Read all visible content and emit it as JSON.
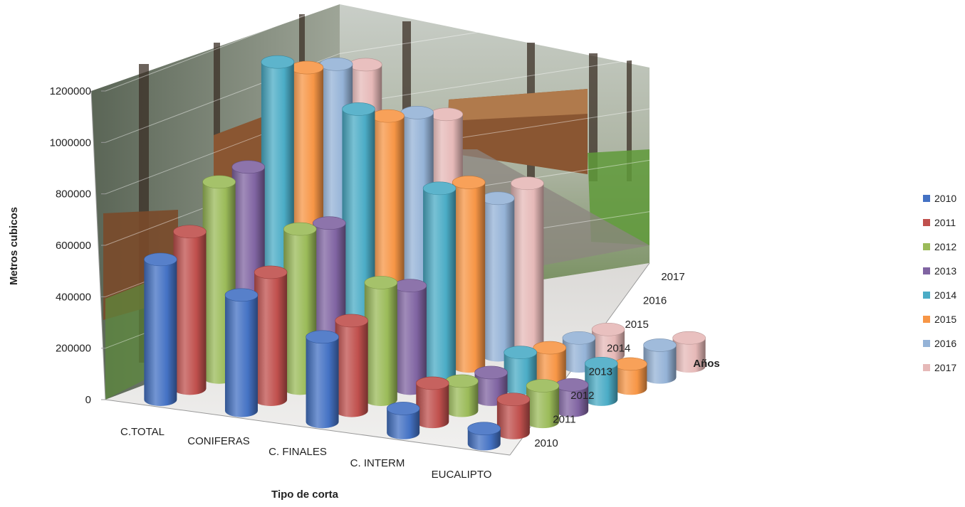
{
  "chart_data": {
    "type": "bar",
    "subtype": "3d-cylinder",
    "categories": [
      "C.TOTAL",
      "CONIFERAS",
      "C. FINALES",
      "C. INTERM",
      "EUCALIPTO"
    ],
    "series": [
      {
        "name": "2010",
        "color": "#4472C4",
        "values": [
          545000,
          450000,
          330000,
          95000,
          60000
        ]
      },
      {
        "name": "2011",
        "color": "#C0504D",
        "values": [
          610000,
          495000,
          350000,
          150000,
          130000
        ]
      },
      {
        "name": "2012",
        "color": "#9BBB59",
        "values": [
          760000,
          620000,
          455000,
          115000,
          140000
        ]
      },
      {
        "name": "2013",
        "color": "#8064A2",
        "values": [
          775000,
          600000,
          400000,
          105000,
          100000
        ]
      },
      {
        "name": "2014",
        "color": "#4BACC6",
        "values": [
          1140000,
          1000000,
          735000,
          140000,
          140000
        ]
      },
      {
        "name": "2015",
        "color": "#F79646",
        "values": [
          1075000,
          930000,
          715000,
          115000,
          95000
        ]
      },
      {
        "name": "2016",
        "color": "#95B3D7",
        "values": [
          1045000,
          900000,
          610000,
          110000,
          125000
        ]
      },
      {
        "name": "2017",
        "color": "#E6B9B8",
        "values": [
          1000000,
          850000,
          625000,
          100000,
          110000
        ]
      }
    ],
    "zlabels": [
      "2010",
      "2011",
      "2012",
      "2013",
      "2014",
      "2015",
      "2016",
      "2017"
    ],
    "yticks": [
      "0",
      "200000",
      "400000",
      "600000",
      "800000",
      "1000000",
      "1200000"
    ],
    "ylim": [
      0,
      1200000
    ],
    "xlabel": "Tipo de corta",
    "ylabel": "Metros cubicos",
    "zlabel": "Años",
    "legend_position": "right",
    "background": "forest-photo"
  }
}
